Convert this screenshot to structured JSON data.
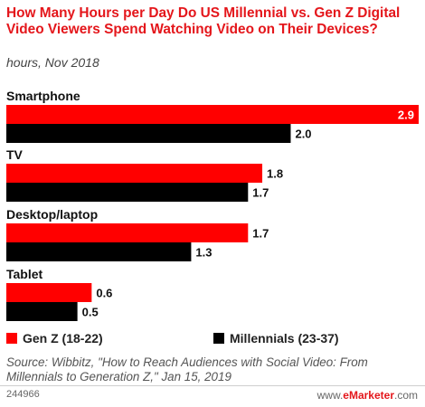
{
  "header": {
    "title": "How Many Hours per Day Do US Millennial vs. Gen Z Digital Video Viewers Spend Watching Video on Their Devices?",
    "subtitle": "hours, Nov 2018"
  },
  "chart_data": {
    "type": "bar",
    "orientation": "horizontal",
    "title": "How Many Hours per Day Do US Millennial vs. Gen Z Digital Video Viewers Spend Watching Video on Their Devices?",
    "subtitle": "hours, Nov 2018",
    "categories": [
      "Smartphone",
      "TV",
      "Desktop/laptop",
      "Tablet"
    ],
    "series": [
      {
        "name": "Gen Z (18-22)",
        "color": "#ff0000",
        "values": [
          2.9,
          1.8,
          1.7,
          0.6
        ]
      },
      {
        "name": "Millennials (23-37)",
        "color": "#000000",
        "values": [
          2.0,
          1.7,
          1.3,
          0.5
        ]
      }
    ],
    "value_labels": [
      [
        "2.9",
        "1.8",
        "1.7",
        "0.6"
      ],
      [
        "2.0",
        "1.7",
        "1.3",
        "0.5"
      ]
    ],
    "xlim": [
      0,
      2.9
    ],
    "grid": false,
    "legend": "bottom"
  },
  "legend": {
    "genz_label": "Gen Z (18-22)",
    "millennials_label": "Millennials (23-37)"
  },
  "footer": {
    "source": "Source: Wibbitz, \"How to Reach Audiences with Social Video: From Millennials to Generation Z,\" Jan 15, 2019",
    "chart_id": "244966",
    "brand_prefix": "www.",
    "brand_name": "eMarketer",
    "brand_suffix": ".com"
  }
}
